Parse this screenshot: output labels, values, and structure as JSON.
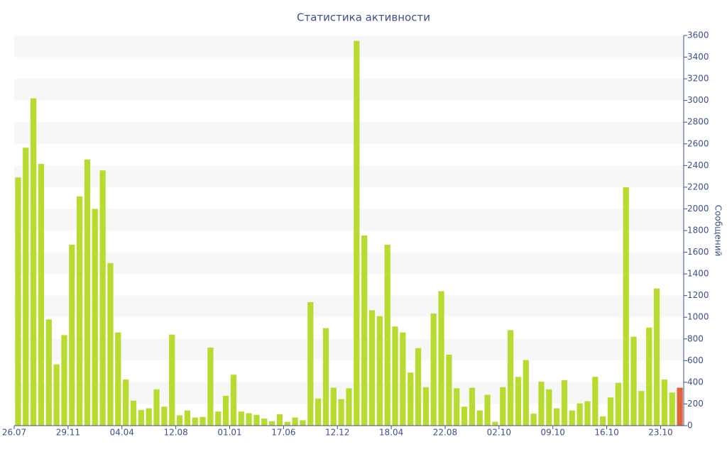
{
  "chart_data": {
    "type": "bar",
    "title": "Статистика активности",
    "y_label": "Сообщений",
    "categories": [
      "26.07",
      null,
      null,
      null,
      null,
      null,
      null,
      "29.11",
      null,
      null,
      null,
      null,
      null,
      null,
      "04.04",
      null,
      null,
      null,
      null,
      null,
      null,
      "12.08",
      null,
      null,
      null,
      null,
      null,
      null,
      "01.01",
      null,
      null,
      null,
      null,
      null,
      null,
      "17.06",
      null,
      null,
      null,
      null,
      null,
      null,
      "12.12",
      null,
      null,
      null,
      null,
      null,
      null,
      "18.04",
      null,
      null,
      null,
      null,
      null,
      null,
      "22.08",
      null,
      null,
      null,
      null,
      null,
      null,
      "02.10",
      null,
      null,
      null,
      null,
      null,
      null,
      "09.10",
      null,
      null,
      null,
      null,
      null,
      null,
      "16.10",
      null,
      null,
      null,
      null,
      null,
      null,
      "23.10",
      null,
      null
    ],
    "values": [
      2290,
      2565,
      3020,
      2415,
      980,
      565,
      835,
      1670,
      2115,
      2455,
      2000,
      2355,
      1500,
      860,
      425,
      230,
      145,
      160,
      335,
      175,
      840,
      95,
      140,
      75,
      80,
      720,
      130,
      275,
      470,
      130,
      115,
      100,
      65,
      40,
      105,
      35,
      75,
      50,
      1140,
      250,
      900,
      350,
      245,
      345,
      3550,
      1755,
      1065,
      1010,
      1670,
      915,
      860,
      490,
      715,
      355,
      1035,
      1240,
      655,
      345,
      175,
      350,
      140,
      285,
      35,
      355,
      880,
      450,
      605,
      110,
      405,
      335,
      160,
      420,
      140,
      205,
      225,
      450,
      85,
      260,
      395,
      2200,
      820,
      320,
      905,
      1265,
      425,
      305,
      350
    ],
    "color": "#b7dc2f",
    "last_bar_color": "#e2633a",
    "ylim": [
      0,
      3600
    ],
    "yticks": [
      0,
      200,
      400,
      600,
      800,
      1000,
      1200,
      1400,
      1600,
      1800,
      2000,
      2200,
      2400,
      2600,
      2800,
      3000,
      3200,
      3400,
      3600
    ],
    "y_axis_side": "right",
    "grid": "striped"
  }
}
